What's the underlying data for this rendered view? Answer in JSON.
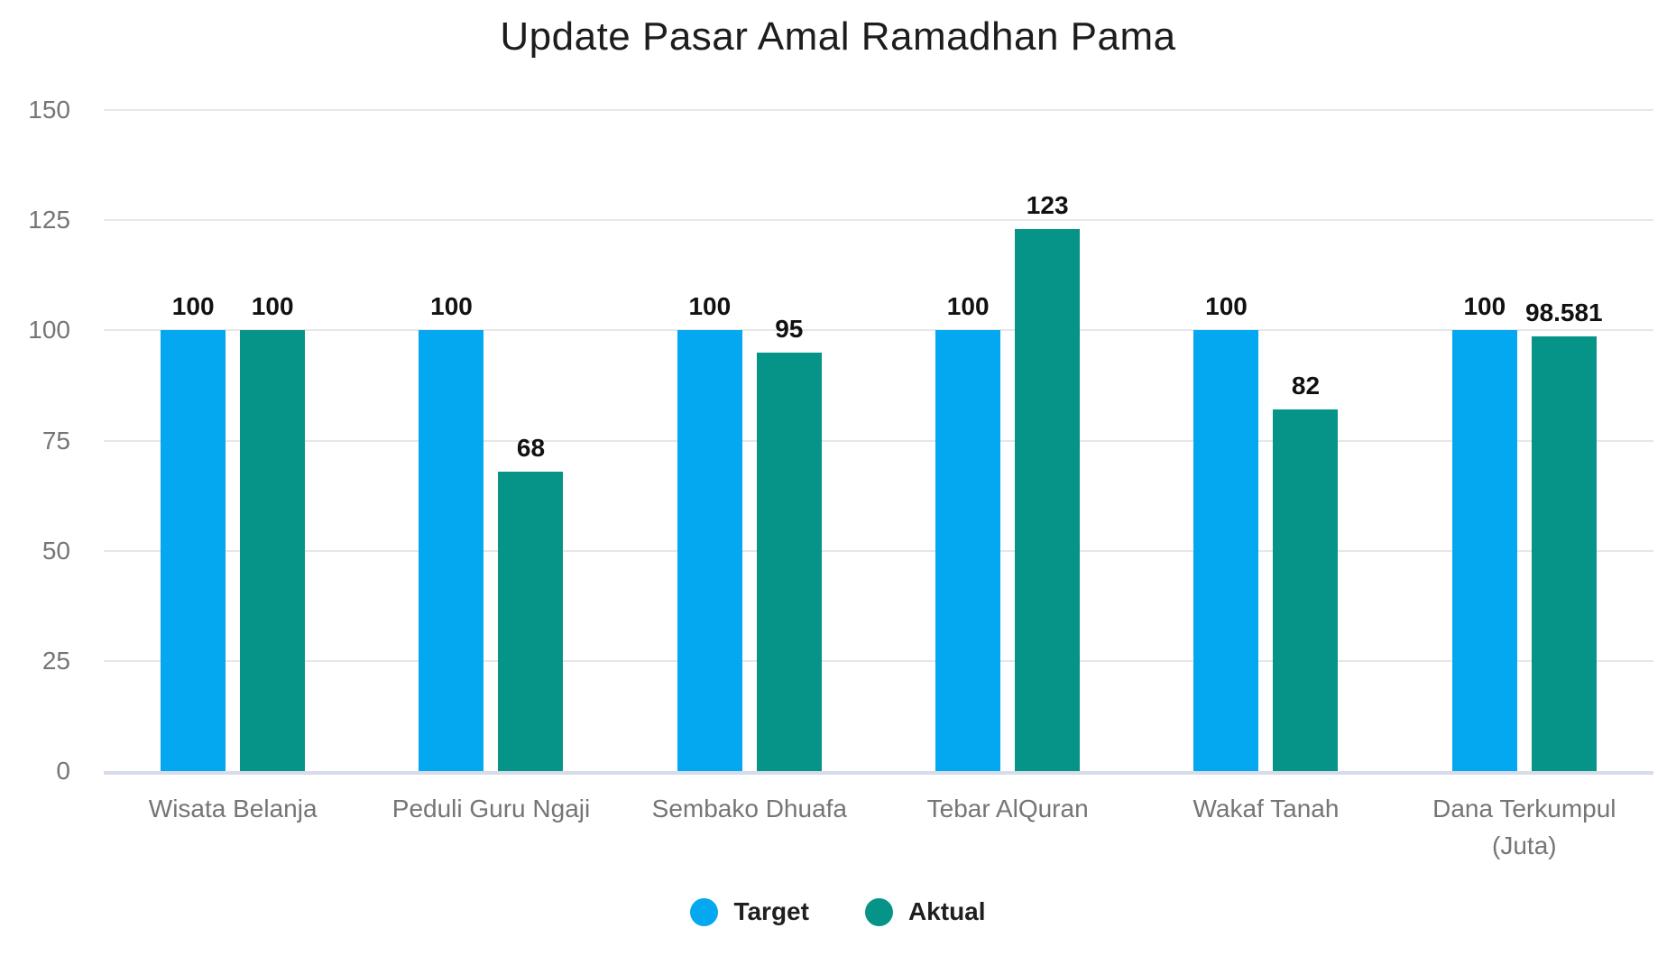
{
  "chart_data": {
    "type": "bar",
    "title": "Update Pasar Amal Ramadhan Pama",
    "categories": [
      "Wisata Belanja",
      "Peduli Guru Ngaji",
      "Sembako Dhuafa",
      "Tebar AlQuran",
      "Wakaf Tanah",
      "Dana Terkumpul (Juta)"
    ],
    "series": [
      {
        "name": "Target",
        "color": "#04a8f0",
        "values": [
          100,
          100,
          100,
          100,
          100,
          100
        ],
        "value_labels": [
          "100",
          "100",
          "100",
          "100",
          "100",
          "100"
        ]
      },
      {
        "name": "Aktual",
        "color": "#069388",
        "values": [
          100,
          68,
          95,
          123,
          82,
          98.581
        ],
        "value_labels": [
          "100",
          "68",
          "95",
          "123",
          "82",
          "98.581"
        ]
      }
    ],
    "xlabel": "",
    "ylabel": "",
    "ylim": [
      0,
      150
    ],
    "yticks": [
      0,
      25,
      50,
      75,
      100,
      125,
      150
    ],
    "grid": true,
    "legend_position": "bottom"
  },
  "colors": {
    "gridline": "#e7e7e7",
    "baseline": "#d7dcea",
    "tick_label": "#757575",
    "category_label": "#757575",
    "value_label": "#111111",
    "title": "#1d1d1d",
    "background": "#ffffff"
  }
}
